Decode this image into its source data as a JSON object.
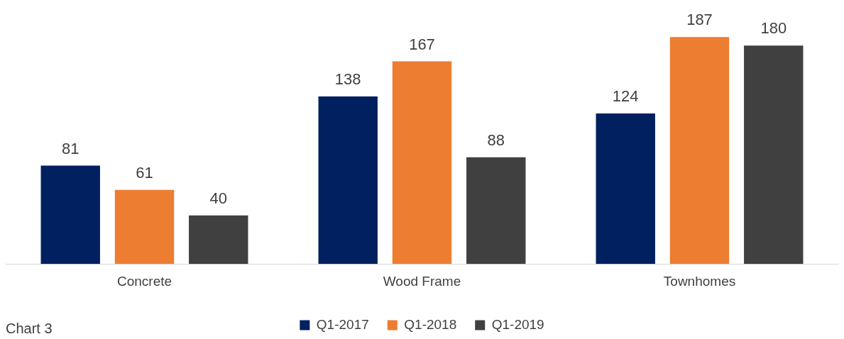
{
  "chart_data": {
    "type": "bar",
    "categories": [
      "Concrete",
      "Wood Frame",
      "Townhomes"
    ],
    "series": [
      {
        "name": "Q1-2017",
        "color": "#002060",
        "values": [
          81,
          138,
          124
        ]
      },
      {
        "name": "Q1-2018",
        "color": "#ed7d31",
        "values": [
          61,
          167,
          187
        ]
      },
      {
        "name": "Q1-2019",
        "color": "#404040",
        "values": [
          40,
          88,
          180
        ]
      }
    ],
    "tick_labels": "x",
    "grid": false,
    "legend": "bottom",
    "data_labels": true,
    "annotations": [
      "Chart 3"
    ]
  }
}
